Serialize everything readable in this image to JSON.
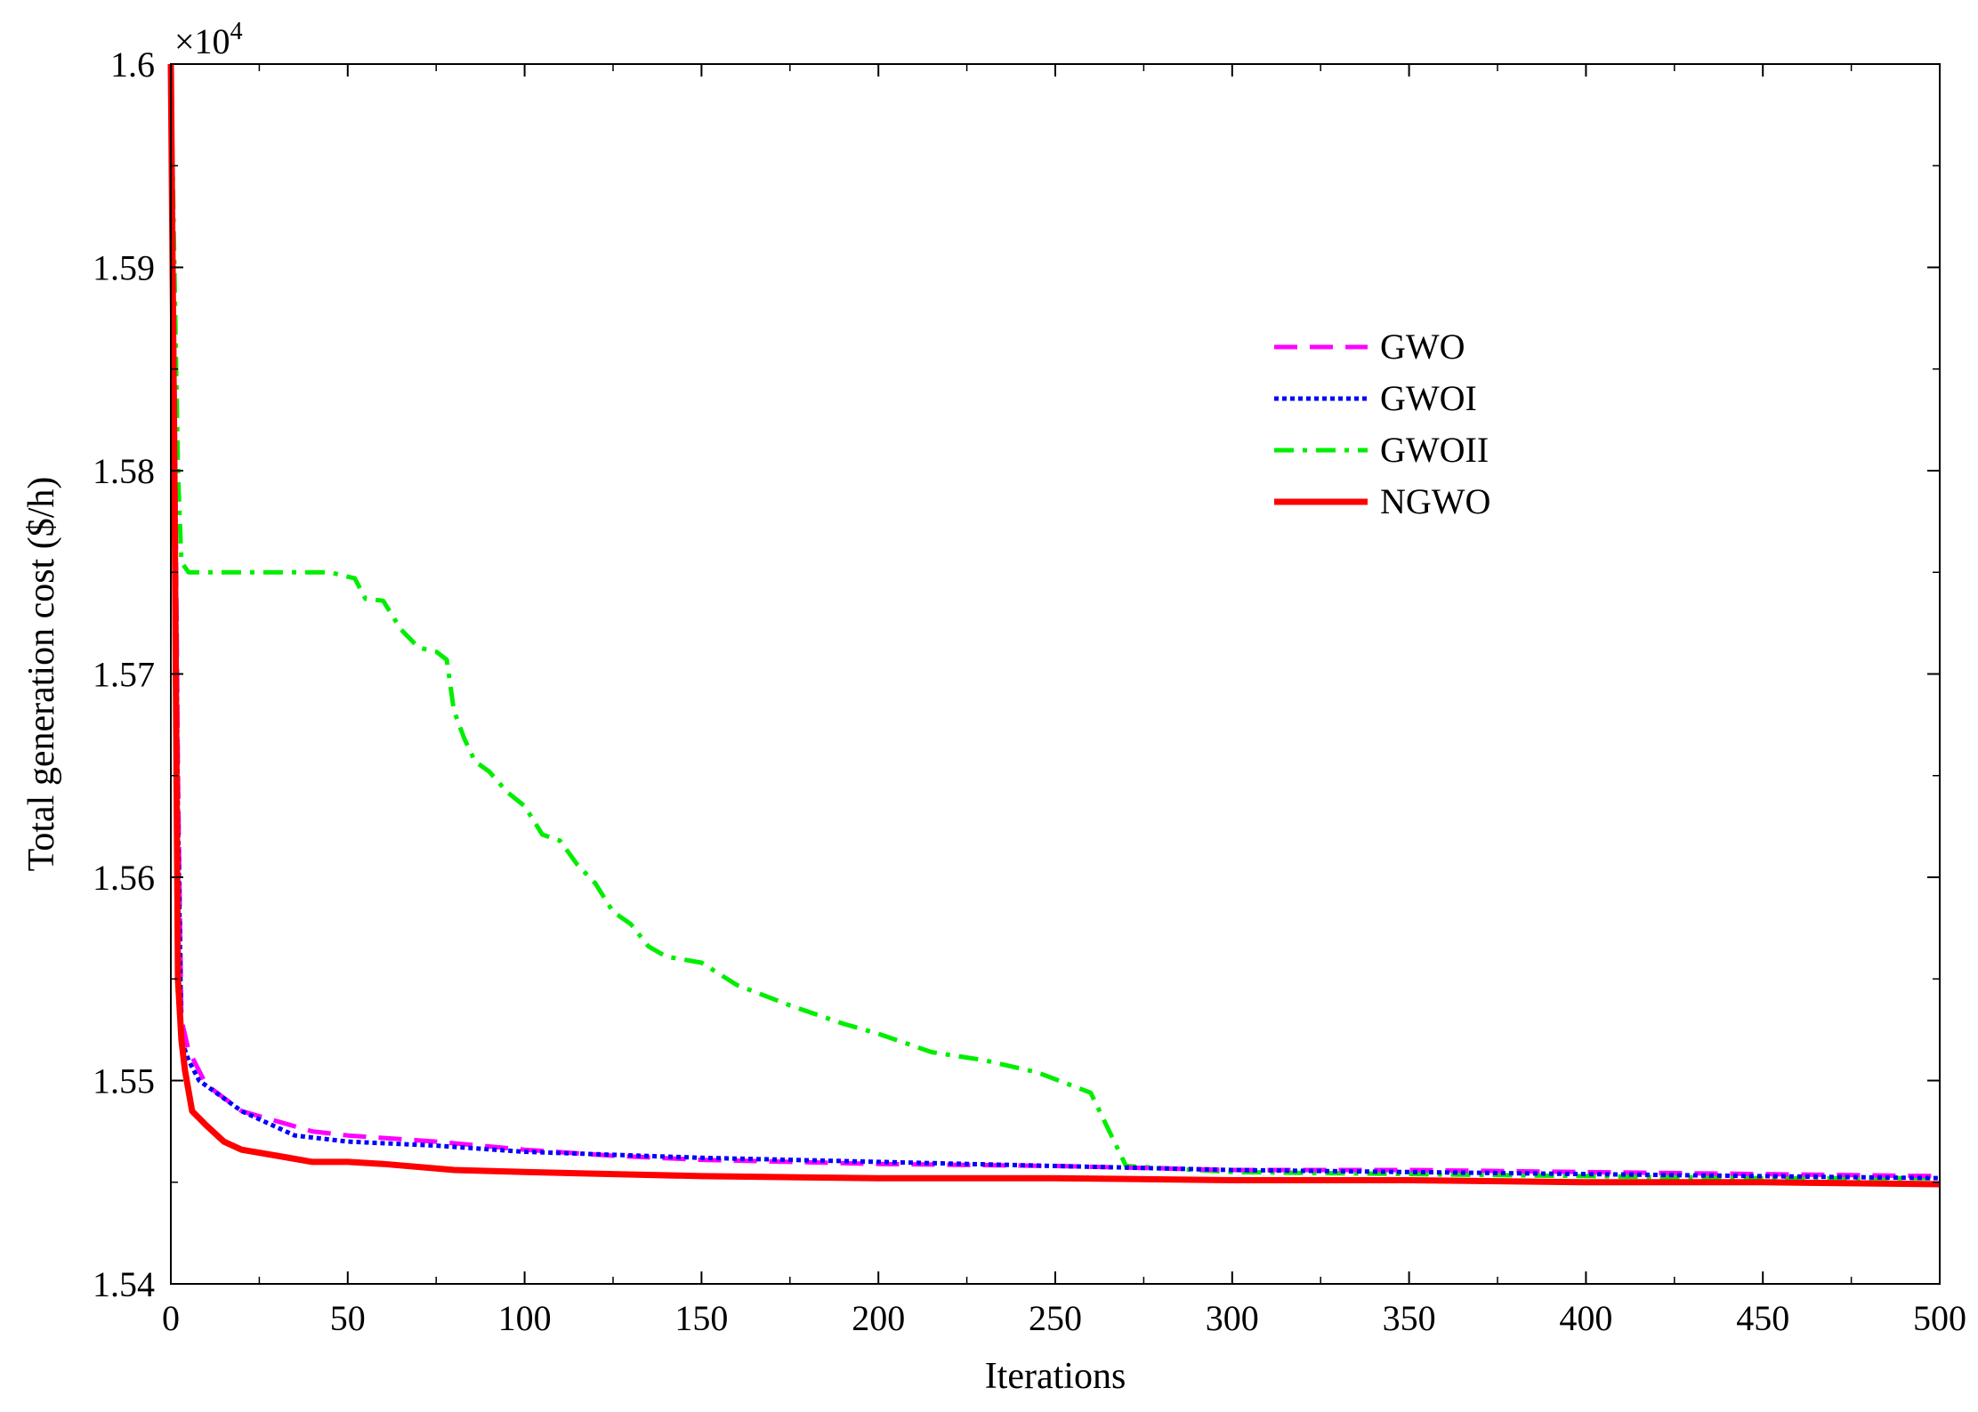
{
  "chart_data": {
    "type": "line",
    "xlabel": "Iterations",
    "ylabel": "Total generation cost ($/h)",
    "y_multiplier_label": "×10",
    "y_multiplier_exp": "4",
    "xlim": [
      0,
      500
    ],
    "ylim": [
      1.54,
      1.6
    ],
    "xticks": [
      0,
      50,
      100,
      150,
      200,
      250,
      300,
      350,
      400,
      450,
      500
    ],
    "yticks": [
      1.54,
      1.55,
      1.56,
      1.57,
      1.58,
      1.59,
      1.6
    ],
    "ytick_labels": [
      "1.54",
      "1.55",
      "1.56",
      "1.57",
      "1.58",
      "1.59",
      "1.6"
    ],
    "grid": false,
    "legend_position": "upper-right-center",
    "series": [
      {
        "name": "GWO",
        "color": "#ff00ff",
        "dash": "dashed",
        "points": [
          [
            0,
            1.6
          ],
          [
            1,
            1.585
          ],
          [
            2,
            1.565
          ],
          [
            3,
            1.553
          ],
          [
            5,
            1.5515
          ],
          [
            10,
            1.5498
          ],
          [
            20,
            1.5485
          ],
          [
            30,
            1.548
          ],
          [
            40,
            1.5475
          ],
          [
            50,
            1.5473
          ],
          [
            75,
            1.547
          ],
          [
            100,
            1.5466
          ],
          [
            125,
            1.5463
          ],
          [
            150,
            1.5461
          ],
          [
            175,
            1.546
          ],
          [
            200,
            1.5459
          ],
          [
            250,
            1.5458
          ],
          [
            300,
            1.5456
          ],
          [
            350,
            1.5456
          ],
          [
            400,
            1.5455
          ],
          [
            450,
            1.5454
          ],
          [
            500,
            1.5453
          ]
        ]
      },
      {
        "name": "GWOI",
        "color": "#0000ff",
        "dash": "dotted",
        "points": [
          [
            0,
            1.6
          ],
          [
            1,
            1.583
          ],
          [
            2,
            1.563
          ],
          [
            3,
            1.552
          ],
          [
            5,
            1.551
          ],
          [
            8,
            1.55
          ],
          [
            12,
            1.5495
          ],
          [
            20,
            1.5485
          ],
          [
            35,
            1.5473
          ],
          [
            50,
            1.547
          ],
          [
            75,
            1.5468
          ],
          [
            100,
            1.5465
          ],
          [
            150,
            1.5462
          ],
          [
            200,
            1.546
          ],
          [
            250,
            1.5458
          ],
          [
            300,
            1.5456
          ],
          [
            350,
            1.5455
          ],
          [
            400,
            1.5454
          ],
          [
            450,
            1.5453
          ],
          [
            500,
            1.5452
          ]
        ]
      },
      {
        "name": "GWOII",
        "color": "#00ee00",
        "dash": "dashdot",
        "points": [
          [
            0,
            1.6
          ],
          [
            1,
            1.59
          ],
          [
            2,
            1.58
          ],
          [
            3,
            1.5755
          ],
          [
            5,
            1.575
          ],
          [
            20,
            1.575
          ],
          [
            45,
            1.575
          ],
          [
            52,
            1.5747
          ],
          [
            55,
            1.5737
          ],
          [
            60,
            1.5736
          ],
          [
            65,
            1.5722
          ],
          [
            70,
            1.5713
          ],
          [
            75,
            1.5711
          ],
          [
            78,
            1.5707
          ],
          [
            80,
            1.5682
          ],
          [
            83,
            1.5668
          ],
          [
            86,
            1.5657
          ],
          [
            90,
            1.5652
          ],
          [
            95,
            1.5642
          ],
          [
            100,
            1.5635
          ],
          [
            105,
            1.5621
          ],
          [
            110,
            1.5618
          ],
          [
            115,
            1.5606
          ],
          [
            120,
            1.5597
          ],
          [
            125,
            1.5583
          ],
          [
            130,
            1.5577
          ],
          [
            135,
            1.5566
          ],
          [
            140,
            1.5561
          ],
          [
            150,
            1.5558
          ],
          [
            160,
            1.5547
          ],
          [
            175,
            1.5537
          ],
          [
            190,
            1.5528
          ],
          [
            200,
            1.5523
          ],
          [
            215,
            1.5514
          ],
          [
            230,
            1.551
          ],
          [
            245,
            1.5504
          ],
          [
            260,
            1.5494
          ],
          [
            270,
            1.5458
          ],
          [
            300,
            1.5455
          ],
          [
            350,
            1.5454
          ],
          [
            400,
            1.5453
          ],
          [
            450,
            1.5452
          ],
          [
            500,
            1.5452
          ]
        ]
      },
      {
        "name": "NGWO",
        "color": "#ff0000",
        "dash": "solid",
        "points": [
          [
            0,
            1.6
          ],
          [
            1,
            1.58
          ],
          [
            2,
            1.555
          ],
          [
            3,
            1.552
          ],
          [
            4,
            1.5505
          ],
          [
            6,
            1.5485
          ],
          [
            10,
            1.5478
          ],
          [
            15,
            1.547
          ],
          [
            20,
            1.5466
          ],
          [
            30,
            1.5463
          ],
          [
            40,
            1.546
          ],
          [
            50,
            1.546
          ],
          [
            60,
            1.5459
          ],
          [
            80,
            1.5456
          ],
          [
            100,
            1.5455
          ],
          [
            125,
            1.5454
          ],
          [
            150,
            1.5453
          ],
          [
            200,
            1.5452
          ],
          [
            250,
            1.5452
          ],
          [
            300,
            1.5451
          ],
          [
            350,
            1.5451
          ],
          [
            400,
            1.545
          ],
          [
            450,
            1.545
          ],
          [
            500,
            1.5449
          ]
        ]
      }
    ]
  }
}
